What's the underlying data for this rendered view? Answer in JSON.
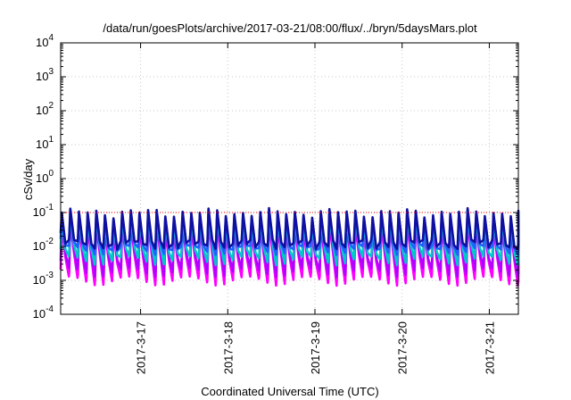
{
  "chart_data": {
    "type": "line",
    "title": "/data/run/goesPlots/archive/2017-03-21/08:00/flux/../bryn/5daysMars.plot",
    "xlabel": "Coordinated Universal Time (UTC)",
    "ylabel": "cSv/day",
    "yscale": "log",
    "ylim": [
      0.0001,
      10000
    ],
    "xlim": [
      "2017-03-16 02:00",
      "2017-03-21 08:00"
    ],
    "grid": true,
    "x_ticks": [
      "2017-3-17",
      "2017-3-18",
      "2017-3-19",
      "2017-3-20",
      "2017-3-21"
    ],
    "y_ticks": [
      {
        "base": "10",
        "exp": "-4"
      },
      {
        "base": "10",
        "exp": "-3"
      },
      {
        "base": "10",
        "exp": "-2"
      },
      {
        "base": "10",
        "exp": "-1"
      },
      {
        "base": "10",
        "exp": "0"
      },
      {
        "base": "10",
        "exp": "1"
      },
      {
        "base": "10",
        "exp": "2"
      },
      {
        "base": "10",
        "exp": "3"
      },
      {
        "base": "10",
        "exp": "4"
      }
    ],
    "reference_line": {
      "value": 0.1,
      "color": "#ff0000"
    },
    "oscillation": {
      "cycles": 53,
      "peak_approx": 0.1,
      "trough_approx": 0.001
    },
    "series": [
      {
        "color": "#ff00ff",
        "peak": 0.04,
        "trough": 0.001
      },
      {
        "color": "#b000ff",
        "peak": 0.05,
        "trough": 0.0018
      },
      {
        "color": "#00c8c8",
        "peak": 0.07,
        "trough": 0.004
      },
      {
        "color": "#2060ff",
        "peak": 0.09,
        "trough": 0.008
      },
      {
        "color": "#1010a0",
        "peak": 0.1,
        "trough": 0.012
      }
    ]
  }
}
